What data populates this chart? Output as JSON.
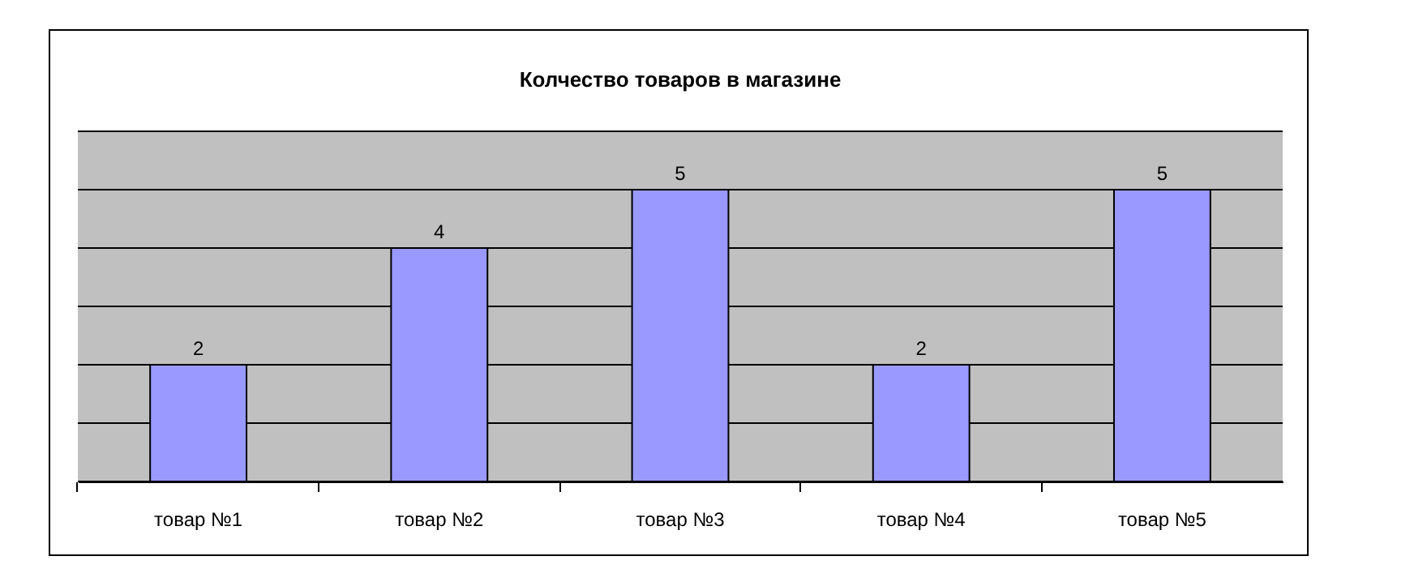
{
  "chart_data": {
    "type": "bar",
    "title": "Колчество товаров в магазине",
    "categories": [
      "товар №1",
      "товар №2",
      "товар №3",
      "товар №4",
      "товар №5"
    ],
    "values": [
      2,
      4,
      5,
      2,
      5
    ],
    "color": "#9999ff",
    "data_labels": true,
    "ylim": [
      0,
      6
    ],
    "yticks": [
      {
        "value": 0,
        "label": null
      },
      {
        "value": 1,
        "label": null
      },
      {
        "value": 2,
        "label": null
      },
      {
        "value": 3,
        "label": null
      },
      {
        "value": 4,
        "label": null
      },
      {
        "value": 5,
        "label": null
      },
      {
        "value": 6,
        "label": null
      }
    ],
    "grid": "y",
    "tick_labels": "x"
  }
}
